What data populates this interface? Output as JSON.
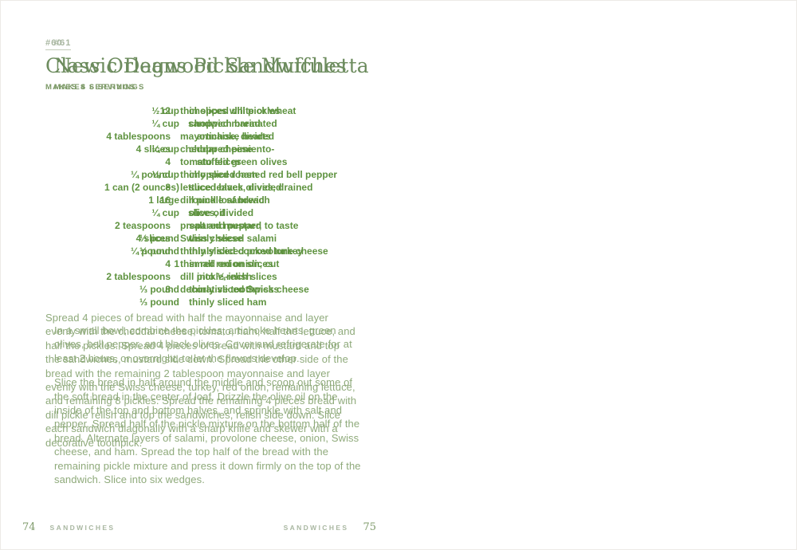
{
  "colors": {
    "background": "#ffffff",
    "recipe_number": "#a9b7a1",
    "title_green": "#6d8c5e",
    "ingredient_green": "#5f9340",
    "body_green": "#8faa7b",
    "footer_green": "#7f9b6b"
  },
  "pages": [
    {
      "number": "#60",
      "title": "Classic Dagwood Sandwiches",
      "servings": "MAKES 4 SERVINGS",
      "ingredients": [
        {
          "qty": "12",
          "lines": [
            "thin slices white or wheat",
            "sandwich bread"
          ]
        },
        {
          "qty": "4 tablespoons",
          "lines": [
            "mayonnaise, divided"
          ]
        },
        {
          "qty": "4 slices",
          "lines": [
            "cheddar cheese"
          ]
        },
        {
          "qty": "4",
          "lines": [
            "tomato slices"
          ]
        },
        {
          "qty": "¼ pound",
          "lines": [
            "thinly sliced ham"
          ]
        },
        {
          "qty": "8",
          "lines": [
            "lettuce leaves, divided"
          ]
        },
        {
          "qty": "16",
          "lines": [
            "dill pickle sandwich",
            "slices, divided"
          ]
        },
        {
          "qty": "2 teaspoons",
          "lines": [
            "prepared mustard"
          ]
        },
        {
          "qty": "4 slices",
          "lines": [
            "Swiss cheese"
          ]
        },
        {
          "qty": "¼ pound",
          "lines": [
            "thinly sliced cooked turkey"
          ]
        },
        {
          "qty": "4",
          "lines": [
            "thin red onion slices"
          ]
        },
        {
          "qty": "2 tablespoons",
          "lines": [
            "dill pickle relish"
          ]
        },
        {
          "qty": "8",
          "lines": [
            "decorative toothpicks"
          ]
        }
      ],
      "paragraphs": [
        "Spread 4 pieces of bread with half the mayonnaise and layer evenly with the cheddar cheese, tomato, ham, half the lettuce, and half the pickles. Spread 4 pieces of bread with mustard and top the sandwiches, mustard side down. Spread the other side of the bread with the remaining 2 tablespoon mayonnaise and layer evenly with the Swiss cheese, turkey, red onion, remaining lettuce, and remaining 8 pickles. Spread the remaining 4 pieces bread with dill pickle relish and top the sandwiches, relish side down. Slice each sandwich diagonally with a sharp knife and skewer with a decorative toothpick."
      ],
      "footer": {
        "page_number": "74",
        "section": "SANDWICHES"
      }
    },
    {
      "number": "#61",
      "title": "New Orleans Pickle Muffuletta",
      "servings": "MAKES 6 SERVINGS",
      "ingredients": [
        {
          "qty": "½ cup",
          "lines": [
            "chopped dill pickles"
          ]
        },
        {
          "qty": "¼ cup",
          "lines": [
            "chopped marinated",
            "artichoke hearts"
          ]
        },
        {
          "qty": "¼ cup",
          "lines": [
            "chopped pimiento-",
            "stuffed green olives"
          ]
        },
        {
          "qty": "¼ cup",
          "lines": [
            "chopped roasted red bell pepper"
          ]
        },
        {
          "qty": "1 can (2 ounces)",
          "lines": [
            "sliced black olives, drained"
          ]
        },
        {
          "qty": "1 large",
          "lines": [
            "round loaf bread"
          ]
        },
        {
          "qty": "¼ cup",
          "lines": [
            "olive oil"
          ]
        },
        {
          "qty": "",
          "lines": [
            "salt and pepper, to taste"
          ]
        },
        {
          "qty": "⅓ pound",
          "lines": [
            "thinly sliced salami"
          ]
        },
        {
          "qty": "⅓ pound",
          "lines": [
            "thinly sliced provolone cheese"
          ]
        },
        {
          "qty": "1",
          "lines": [
            "small red onion, cut",
            "into ¼-inch slices"
          ]
        },
        {
          "qty": "⅓ pound",
          "lines": [
            "thinly sliced Swiss cheese"
          ]
        },
        {
          "qty": "⅓ pound",
          "lines": [
            "thinly sliced ham"
          ]
        }
      ],
      "paragraphs": [
        "In a small bowl, combine the pickles, artichoke hearts, green olives, bell pepper, and black olives. Cover and refrigerate for at least 2 hours, or overnight, to let the flavors develop.",
        "Slice the bread in half around the middle and scoop out some of the soft bread in the center of loaf. Drizzle the olive oil on the inside of the top and bottom halves, and sprinkle with salt and pepper. Spread half of the pickle mixture on the bottom half of the bread. Alternate layers of salami, provolone cheese, onion, Swiss cheese, and ham. Spread the top half of the bread with the remaining pickle mixture and press it down firmly on the top of the sandwich. Slice into six wedges."
      ],
      "footer": {
        "page_number": "75",
        "section": "SANDWICHES"
      }
    }
  ]
}
